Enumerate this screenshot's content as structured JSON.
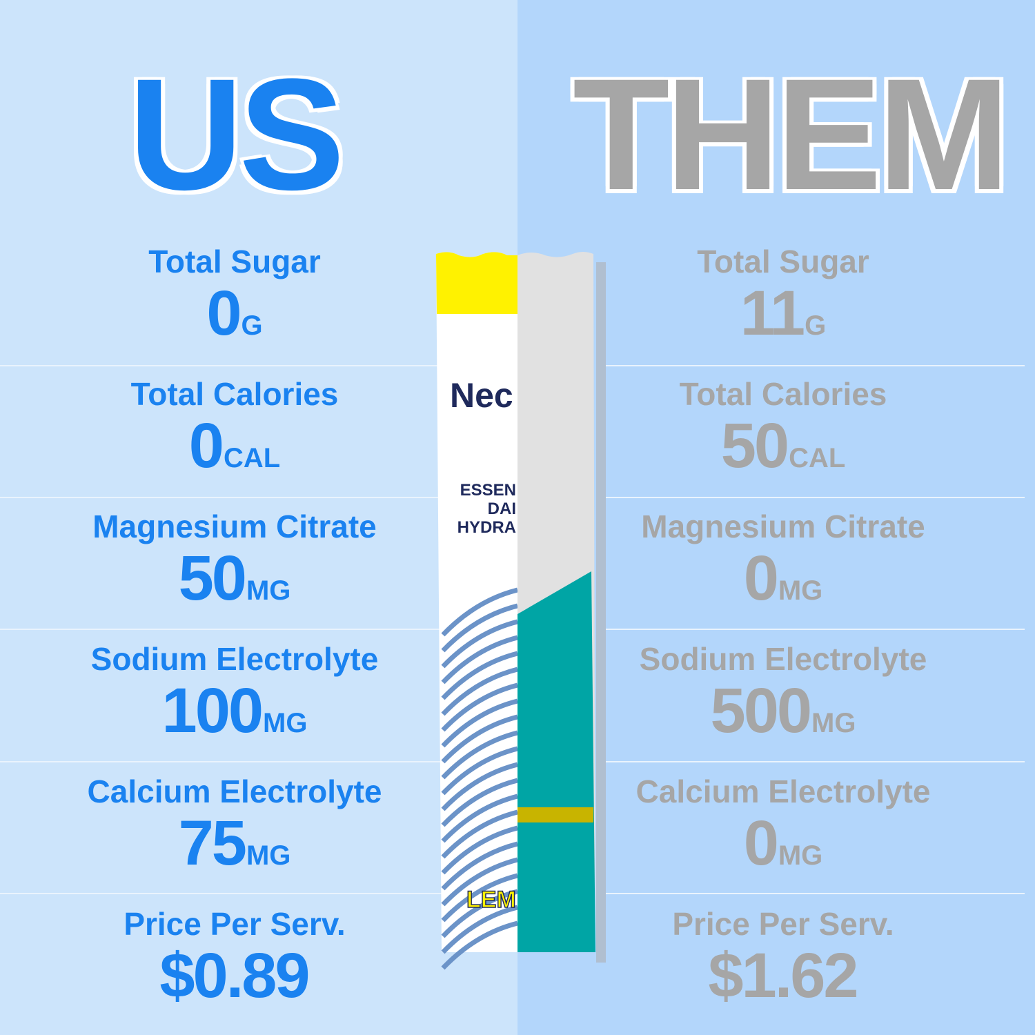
{
  "headings": {
    "us": "US",
    "them": "THEM"
  },
  "colors": {
    "us": "#1a82f0",
    "them": "#a6a6a6",
    "bg_left": "#cce4fb",
    "bg_right": "#b3d6fb",
    "packet_yellow": "#fff200",
    "packet_teal": "#00a5a5"
  },
  "us": [
    {
      "label": "Total Sugar",
      "value": "0",
      "unit": "G"
    },
    {
      "label": "Total Calories",
      "value": "0",
      "unit": "CAL"
    },
    {
      "label": "Magnesium Citrate",
      "value": "50",
      "unit": "MG"
    },
    {
      "label": "Sodium Electrolyte",
      "value": "100",
      "unit": "MG"
    },
    {
      "label": "Calcium Electrolyte",
      "value": "75",
      "unit": "MG"
    },
    {
      "label": "Price Per Serv.",
      "value": "$0.89",
      "unit": ""
    }
  ],
  "them": [
    {
      "label": "Total Sugar",
      "value": "11",
      "unit": "G"
    },
    {
      "label": "Total Calories",
      "value": "50",
      "unit": "CAL"
    },
    {
      "label": "Magnesium Citrate",
      "value": "0",
      "unit": "MG"
    },
    {
      "label": "Sodium Electrolyte",
      "value": "500",
      "unit": "MG"
    },
    {
      "label": "Calcium Electrolyte",
      "value": "0",
      "unit": "MG"
    },
    {
      "label": "Price Per Serv.",
      "value": "$1.62",
      "unit": ""
    }
  ],
  "packet": {
    "brand": "Nec",
    "tagline": [
      "ESSEN",
      "DAI",
      "HYDRA"
    ],
    "flavor": "LEM"
  }
}
